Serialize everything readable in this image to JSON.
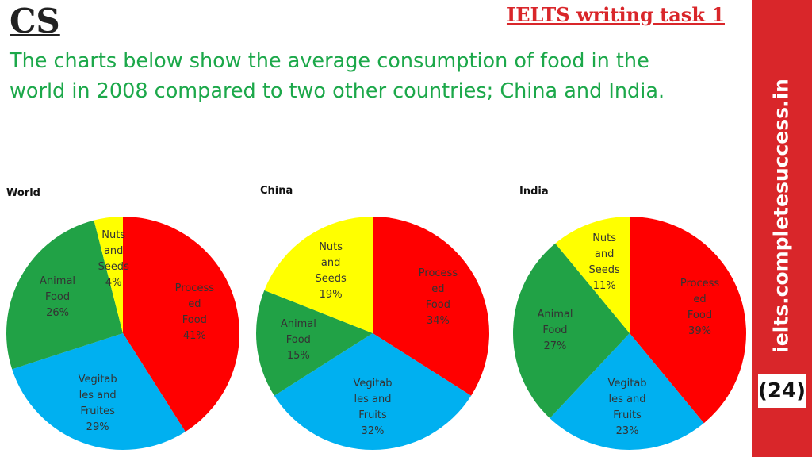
{
  "header": {
    "logo": "CS",
    "task": "IELTS writing task 1",
    "prompt": "The charts below show the average consumption of food in the\nworld in 2008 compared to two other countries; China and India."
  },
  "sidebar": {
    "site": "ielts.completesuccess.in",
    "page": "(24)"
  },
  "chart_data": [
    {
      "type": "pie",
      "title": "World",
      "categories": [
        "Process\ned\nFood",
        "Vegitab\nles and\nFruites",
        "Animal\nFood",
        "Nuts\nand\nSeeds"
      ],
      "values": [
        41,
        29,
        26,
        4
      ],
      "value_labels": [
        "41%",
        "29%",
        "26%",
        "4%"
      ],
      "colors": [
        "#ff0000",
        "#00b0f0",
        "#21a246",
        "#ffff00"
      ]
    },
    {
      "type": "pie",
      "title": "China",
      "categories": [
        "Process\ned\nFood",
        "Vegitab\nles and\nFruits",
        "Animal\nFood",
        "Nuts\nand\nSeeds"
      ],
      "values": [
        34,
        32,
        15,
        19
      ],
      "value_labels": [
        "34%",
        "32%",
        "15%",
        "19%"
      ],
      "colors": [
        "#ff0000",
        "#00b0f0",
        "#21a246",
        "#ffff00"
      ]
    },
    {
      "type": "pie",
      "title": "India",
      "categories": [
        "Process\ned\nFood",
        "Vegitab\nles and\nFruits",
        "Animal\nFood",
        "Nuts\nand\nSeeds"
      ],
      "values": [
        39,
        23,
        27,
        11
      ],
      "value_labels": [
        "39%",
        "23%",
        "27%",
        "11%"
      ],
      "colors": [
        "#ff0000",
        "#00b0f0",
        "#21a246",
        "#ffff00"
      ]
    }
  ]
}
